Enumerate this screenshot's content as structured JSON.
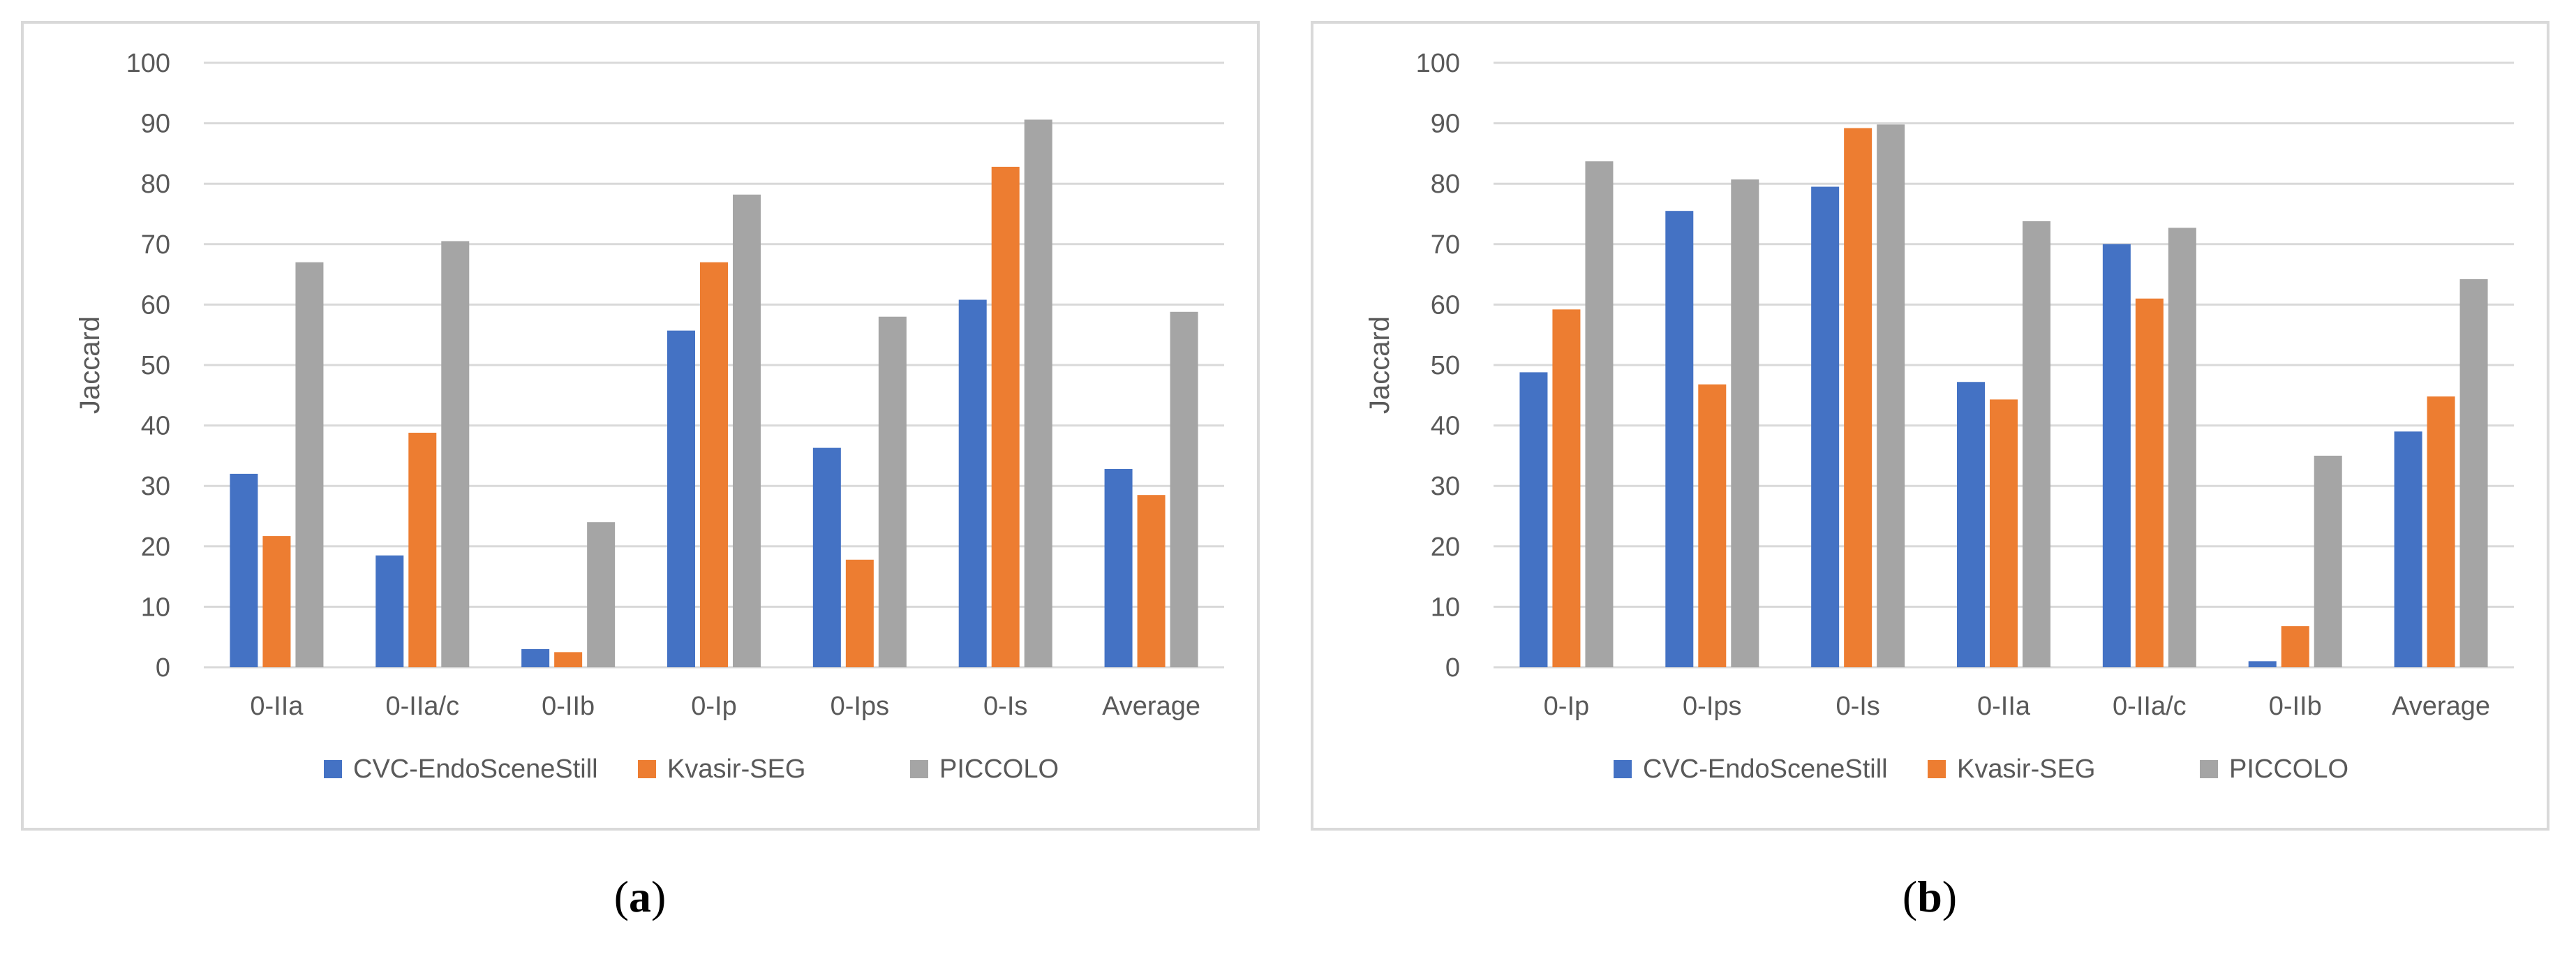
{
  "captions": [
    "a",
    "b"
  ],
  "colors": {
    "CVC-EndoSceneStill": "#4472c4",
    "Kvasir-SEG": "#ed7d31",
    "PICCOLO": "#a5a5a5",
    "gridline": "#d9d9d9",
    "text": "#595959"
  },
  "chart_data": [
    {
      "type": "bar",
      "panel_label": "a",
      "title": "",
      "xlabel": "",
      "ylabel": "Jaccard",
      "ylim": [
        0,
        100
      ],
      "yticks": [
        0,
        10,
        20,
        30,
        40,
        50,
        60,
        70,
        80,
        90,
        100
      ],
      "grid": true,
      "legend_position": "bottom",
      "categories": [
        "0-IIa",
        "0-IIa/c",
        "0-IIb",
        "0-Ip",
        "0-Ips",
        "0-Is",
        "Average"
      ],
      "series": [
        {
          "name": "CVC-EndoSceneStill",
          "values": [
            32,
            18.5,
            3,
            55.7,
            36.3,
            60.8,
            32.8
          ]
        },
        {
          "name": "Kvasir-SEG",
          "values": [
            21.7,
            38.8,
            2.5,
            67,
            17.8,
            82.8,
            28.5
          ]
        },
        {
          "name": "PICCOLO",
          "values": [
            67,
            70.5,
            24,
            78.2,
            58,
            90.6,
            58.8
          ]
        }
      ]
    },
    {
      "type": "bar",
      "panel_label": "b",
      "title": "",
      "xlabel": "",
      "ylabel": "Jaccard",
      "ylim": [
        0,
        100
      ],
      "yticks": [
        0,
        10,
        20,
        30,
        40,
        50,
        60,
        70,
        80,
        90,
        100
      ],
      "grid": true,
      "legend_position": "bottom",
      "categories": [
        "0-Ip",
        "0-Ips",
        "0-Is",
        "0-IIa",
        "0-IIa/c",
        "0-IIb",
        "Average"
      ],
      "series": [
        {
          "name": "CVC-EndoSceneStill",
          "values": [
            48.8,
            75.5,
            79.5,
            47.2,
            70,
            1,
            39
          ]
        },
        {
          "name": "Kvasir-SEG",
          "values": [
            59.2,
            46.8,
            89.2,
            44.3,
            61,
            6.8,
            44.8
          ]
        },
        {
          "name": "PICCOLO",
          "values": [
            83.7,
            80.7,
            89.8,
            73.8,
            72.7,
            35,
            64.2
          ]
        }
      ]
    }
  ]
}
